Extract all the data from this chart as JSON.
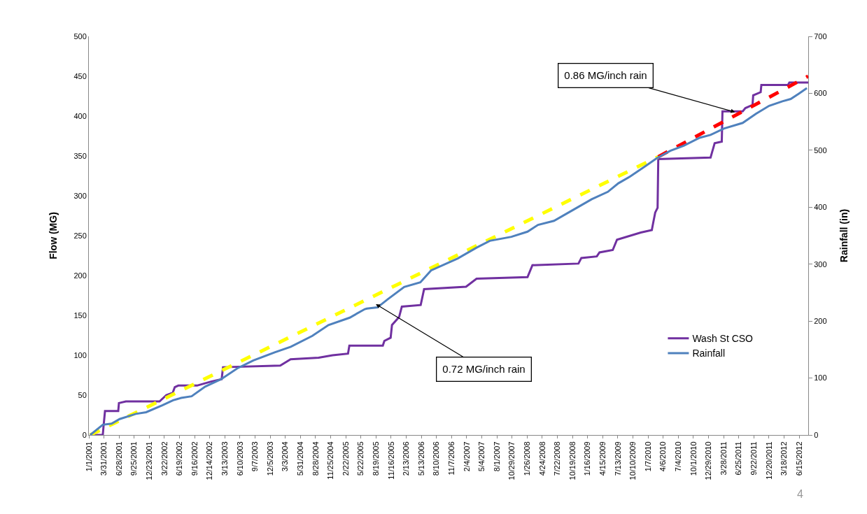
{
  "chart_data": {
    "type": "line",
    "ylabel": "Flow (MG)",
    "y2label": "Rainfall (in)",
    "xlim": [
      "2001-01-01",
      "2012-08-07"
    ],
    "xticks": [
      {
        "value": "2001-01-01",
        "label": "1/1/2001"
      },
      {
        "value": "2001-03-31",
        "label": "3/31/2001"
      },
      {
        "value": "2001-06-28",
        "label": "6/28/2001"
      },
      {
        "value": "2001-09-25",
        "label": "9/25/2001"
      },
      {
        "value": "2001-12-23",
        "label": "12/23/2001"
      },
      {
        "value": "2002-03-22",
        "label": "3/22/2002"
      },
      {
        "value": "2002-06-19",
        "label": "6/19/2002"
      },
      {
        "value": "2002-09-16",
        "label": "9/16/2002"
      },
      {
        "value": "2002-12-14",
        "label": "12/14/2002"
      },
      {
        "value": "2003-03-13",
        "label": "3/13/2003"
      },
      {
        "value": "2003-06-10",
        "label": "6/10/2003"
      },
      {
        "value": "2003-09-07",
        "label": "9/7/2003"
      },
      {
        "value": "2003-12-05",
        "label": "12/5/2003"
      },
      {
        "value": "2004-03-03",
        "label": "3/3/2004"
      },
      {
        "value": "2004-05-31",
        "label": "5/31/2004"
      },
      {
        "value": "2004-08-28",
        "label": "8/28/2004"
      },
      {
        "value": "2004-11-25",
        "label": "11/25/2004"
      },
      {
        "value": "2005-02-22",
        "label": "2/22/2005"
      },
      {
        "value": "2005-05-22",
        "label": "5/22/2005"
      },
      {
        "value": "2005-08-19",
        "label": "8/19/2005"
      },
      {
        "value": "2005-11-16",
        "label": "11/16/2005"
      },
      {
        "value": "2006-02-13",
        "label": "2/13/2006"
      },
      {
        "value": "2006-05-13",
        "label": "5/13/2006"
      },
      {
        "value": "2006-08-10",
        "label": "8/10/2006"
      },
      {
        "value": "2006-11-07",
        "label": "11/7/2006"
      },
      {
        "value": "2007-02-04",
        "label": "2/4/2007"
      },
      {
        "value": "2007-05-04",
        "label": "5/4/2007"
      },
      {
        "value": "2007-08-01",
        "label": "8/1/2007"
      },
      {
        "value": "2007-10-29",
        "label": "10/29/2007"
      },
      {
        "value": "2008-01-26",
        "label": "1/26/2008"
      },
      {
        "value": "2008-04-24",
        "label": "4/24/2008"
      },
      {
        "value": "2008-07-22",
        "label": "7/22/2008"
      },
      {
        "value": "2008-10-19",
        "label": "10/19/2008"
      },
      {
        "value": "2009-01-16",
        "label": "1/16/2009"
      },
      {
        "value": "2009-04-15",
        "label": "4/15/2009"
      },
      {
        "value": "2009-07-13",
        "label": "7/13/2009"
      },
      {
        "value": "2009-10-10",
        "label": "10/10/2009"
      },
      {
        "value": "2010-01-07",
        "label": "1/7/2010"
      },
      {
        "value": "2010-04-06",
        "label": "4/6/2010"
      },
      {
        "value": "2010-07-04",
        "label": "7/4/2010"
      },
      {
        "value": "2010-10-01",
        "label": "10/1/2010"
      },
      {
        "value": "2010-12-29",
        "label": "12/29/2010"
      },
      {
        "value": "2011-03-28",
        "label": "3/28/2011"
      },
      {
        "value": "2011-06-25",
        "label": "6/25/2011"
      },
      {
        "value": "2011-09-22",
        "label": "9/22/2011"
      },
      {
        "value": "2011-12-20",
        "label": "12/20/2011"
      },
      {
        "value": "2012-03-18",
        "label": "3/18/2012"
      },
      {
        "value": "2012-06-15",
        "label": "6/15/2012"
      }
    ],
    "ylim": [
      0,
      500
    ],
    "yticks": [
      0,
      50,
      100,
      150,
      200,
      250,
      300,
      350,
      400,
      450,
      500
    ],
    "y2lim": [
      0,
      700
    ],
    "y2ticks": [
      0,
      100,
      200,
      300,
      400,
      500,
      600,
      700
    ],
    "grid": false,
    "legend": "bottom right",
    "marker": "none",
    "line_style": "solid",
    "series": [
      {
        "name": "Wash St CSO",
        "color": "#7030a0",
        "x": [
          "2001-01-09",
          "2001-03-24",
          "2001-03-28",
          "2001-04-06",
          "2001-06-23",
          "2001-06-27",
          "2001-08-07",
          "2002-02-21",
          "2002-04-02",
          "2002-05-10",
          "2002-05-22",
          "2002-06-12",
          "2002-09-30",
          "2002-12-22",
          "2003-02-22",
          "2003-03-02",
          "2004-02-02",
          "2004-04-03",
          "2004-09-15",
          "2004-12-06",
          "2005-03-07",
          "2005-03-15",
          "2005-09-28",
          "2005-10-07",
          "2005-11-13",
          "2005-11-21",
          "2006-01-02",
          "2006-01-18",
          "2006-05-09",
          "2006-05-29",
          "2007-01-31",
          "2007-04-03",
          "2008-01-28",
          "2008-02-26",
          "2008-11-23",
          "2008-12-10",
          "2009-03-11",
          "2009-03-27",
          "2009-06-13",
          "2009-07-08",
          "2009-11-25",
          "2010-01-29",
          "2010-02-06",
          "2010-02-18",
          "2010-03-04",
          "2010-03-08",
          "2011-01-10",
          "2011-01-18",
          "2011-02-03",
          "2011-03-17",
          "2011-03-21",
          "2011-07-18",
          "2011-08-03",
          "2011-09-14",
          "2011-09-18",
          "2011-11-01",
          "2011-11-05",
          "2012-04-10",
          "2012-04-18",
          "2012-08-07"
        ],
        "values": [
          0,
          0,
          10,
          30,
          30,
          40,
          42,
          42,
          50,
          53,
          60,
          62,
          62,
          67,
          70,
          85,
          87,
          95,
          97,
          100,
          102,
          112,
          112,
          118,
          122,
          138,
          148,
          161,
          163,
          183,
          186,
          196,
          198,
          213,
          215,
          222,
          224,
          229,
          232,
          245,
          254,
          257,
          266,
          279,
          285,
          346,
          348,
          354,
          366,
          368,
          406,
          406,
          410,
          414,
          426,
          430,
          439,
          439,
          442,
          442
        ]
      },
      {
        "name": "Rainfall",
        "color": "#4f81bd",
        "axis": "y2",
        "x": [
          "2001-01-09",
          "2001-03-24",
          "2001-05-15",
          "2001-07-01",
          "2001-10-04",
          "2001-12-04",
          "2002-03-09",
          "2002-05-12",
          "2002-06-28",
          "2002-08-29",
          "2002-11-17",
          "2003-02-19",
          "2003-05-25",
          "2003-08-28",
          "2003-12-31",
          "2004-04-04",
          "2004-08-09",
          "2004-11-12",
          "2005-03-17",
          "2005-06-14",
          "2005-06-26",
          "2005-08-27",
          "2005-10-30",
          "2006-02-01",
          "2006-05-07",
          "2006-07-09",
          "2006-12-13",
          "2007-04-03",
          "2007-06-20",
          "2007-10-25",
          "2008-01-28",
          "2008-03-30",
          "2008-07-02",
          "2008-10-21",
          "2009-02-09",
          "2009-05-15",
          "2009-07-16",
          "2009-09-24",
          "2009-12-27",
          "2010-02-27",
          "2010-05-18",
          "2010-08-05",
          "2010-11-07",
          "2011-01-10",
          "2011-03-29",
          "2011-07-18",
          "2011-10-04",
          "2011-12-21",
          "2012-03-08",
          "2012-04-26",
          "2012-06-11",
          "2012-07-30"
        ],
        "values": [
          0,
          18,
          20,
          28,
          37,
          40,
          52,
          61,
          65,
          68,
          85,
          98,
          117,
          131,
          145,
          155,
          174,
          193,
          206,
          221,
          222,
          224,
          239,
          260,
          268,
          289,
          310,
          329,
          341,
          348,
          357,
          369,
          376,
          395,
          414,
          427,
          442,
          454,
          473,
          486,
          499,
          508,
          522,
          527,
          538,
          548,
          564,
          578,
          586,
          590,
          599,
          609
        ]
      },
      {
        "color": "#ffff00",
        "line_style": "dashed",
        "x": [
          "2001-01-09",
          "2010-03-08"
        ],
        "values": [
          0,
          349
        ]
      },
      {
        "color": "#ff0000",
        "line_style": "dashed",
        "x": [
          "2010-03-08",
          "2012-08-07"
        ],
        "values": [
          349,
          450
        ]
      }
    ],
    "annotations": [
      {
        "text": "0.72 MG/inch rain",
        "x": "2005-08-18",
        "y": 164
      },
      {
        "text": "0.86 MG/inch rain",
        "x": "2011-06-03",
        "y": 405
      },
      "4"
    ]
  }
}
